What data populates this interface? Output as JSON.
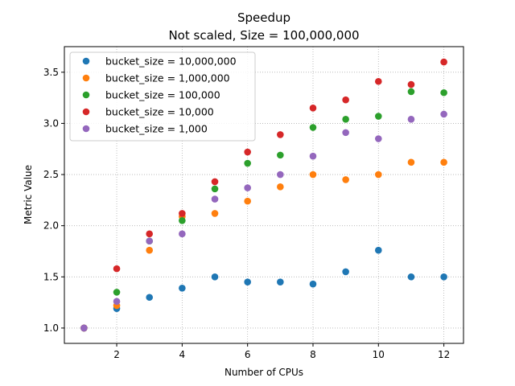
{
  "chart_data": {
    "type": "scatter",
    "title": "Speedup",
    "subtitle": "Not scaled, Size = 100,000,000",
    "xlabel": "Number of CPUs",
    "ylabel": "Metric Value",
    "xlim": [
      0.4,
      12.6
    ],
    "ylim": [
      0.85,
      3.75
    ],
    "xticks": [
      2,
      4,
      6,
      8,
      10,
      12
    ],
    "yticks": [
      1.0,
      1.5,
      2.0,
      2.5,
      3.0,
      3.5
    ],
    "xtick_labels": [
      "2",
      "4",
      "6",
      "8",
      "10",
      "12"
    ],
    "ytick_labels": [
      "1.0",
      "1.5",
      "2.0",
      "2.5",
      "3.0",
      "3.5"
    ],
    "grid": true,
    "legend_position": "top-left",
    "x": [
      1,
      2,
      3,
      4,
      5,
      6,
      7,
      8,
      9,
      10,
      11,
      12
    ],
    "series": [
      {
        "name": "bucket_size = 10,000,000",
        "color": "#1f77b4",
        "values": [
          1.0,
          1.19,
          1.3,
          1.39,
          1.5,
          1.45,
          1.45,
          1.43,
          1.55,
          1.76,
          1.5,
          1.5
        ]
      },
      {
        "name": "bucket_size = 1,000,000",
        "color": "#ff7f0e",
        "values": [
          1.0,
          1.22,
          1.76,
          2.09,
          2.12,
          2.24,
          2.38,
          2.5,
          2.45,
          2.5,
          2.62,
          2.62
        ]
      },
      {
        "name": "bucket_size = 100,000",
        "color": "#2ca02c",
        "values": [
          1.0,
          1.35,
          1.85,
          2.05,
          2.36,
          2.61,
          2.69,
          2.96,
          3.04,
          3.07,
          3.31,
          3.3
        ]
      },
      {
        "name": "bucket_size = 10,000",
        "color": "#d62728",
        "values": [
          1.0,
          1.58,
          1.92,
          2.12,
          2.43,
          2.72,
          2.89,
          3.15,
          3.23,
          3.41,
          3.38,
          3.6
        ]
      },
      {
        "name": "bucket_size = 1,000",
        "color": "#9467bd",
        "values": [
          1.0,
          1.26,
          1.85,
          1.92,
          2.26,
          2.37,
          2.5,
          2.68,
          2.91,
          2.85,
          3.04,
          3.09
        ]
      }
    ]
  }
}
